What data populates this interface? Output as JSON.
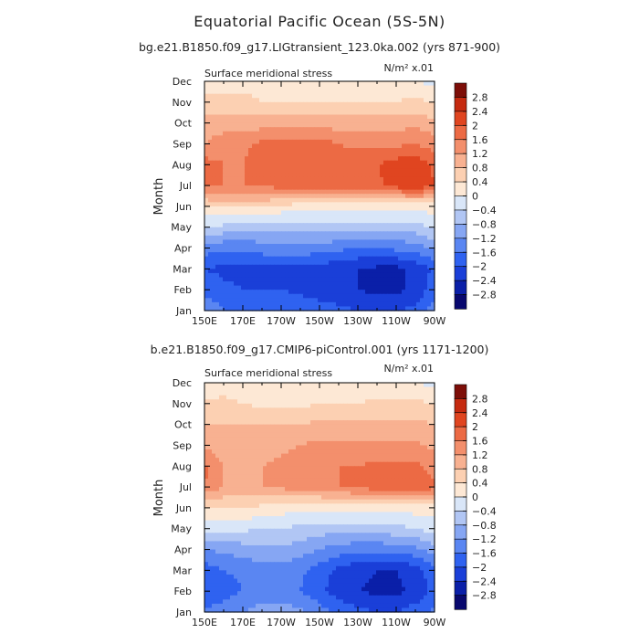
{
  "figure": {
    "title": "Equatorial Pacific Ocean (5S-5N)"
  },
  "chart_data": [
    {
      "type": "heatmap",
      "subtitle": "bg.e21.B1850.f09_g17.LIGtransient_123.0ka.002 (yrs 871-900)",
      "variable": "Surface meridional stress",
      "units": "N/m² x.01",
      "xlabel": "",
      "ylabel": "Month",
      "x_ticks": [
        "150E",
        "170E",
        "170W",
        "150W",
        "130W",
        "110W",
        "90W"
      ],
      "y_ticks": [
        "Jan",
        "Feb",
        "Mar",
        "Apr",
        "May",
        "Jun",
        "Jul",
        "Aug",
        "Sep",
        "Oct",
        "Nov",
        "Dec"
      ],
      "longitude_deg_east": [
        150,
        160,
        170,
        180,
        190,
        200,
        210,
        220,
        230,
        240,
        250,
        260,
        270
      ],
      "months": [
        "Jan",
        "Feb",
        "Mar",
        "Apr",
        "May",
        "Jun",
        "Jul",
        "Aug",
        "Sep",
        "Oct",
        "Nov",
        "Dec"
      ],
      "values": [
        [
          -1.3,
          -1.6,
          -1.6,
          -1.6,
          -1.6,
          -1.7,
          -1.8,
          -1.9,
          -2.0,
          -2.1,
          -2.0,
          -1.9,
          -1.4
        ],
        [
          -1.7,
          -1.9,
          -2.0,
          -2.0,
          -2.0,
          -2.1,
          -2.2,
          -2.3,
          -2.4,
          -2.5,
          -2.5,
          -2.3,
          -1.8
        ],
        [
          -2.0,
          -2.1,
          -2.1,
          -2.1,
          -2.1,
          -2.1,
          -2.2,
          -2.3,
          -2.4,
          -2.5,
          -2.5,
          -2.3,
          -1.9
        ],
        [
          -1.4,
          -1.5,
          -1.5,
          -1.4,
          -1.3,
          -1.3,
          -1.4,
          -1.5,
          -1.6,
          -1.6,
          -1.5,
          -1.4,
          -1.1
        ],
        [
          -0.4,
          -0.5,
          -0.6,
          -0.7,
          -0.7,
          -0.6,
          -0.6,
          -0.6,
          -0.6,
          -0.6,
          -0.6,
          -0.6,
          -0.3
        ],
        [
          0.4,
          0.5,
          0.5,
          0.5,
          0.3,
          0.2,
          0.2,
          0.1,
          0.1,
          0.1,
          0.1,
          0.1,
          0.2
        ],
        [
          1.7,
          1.6,
          1.6,
          1.6,
          1.8,
          1.8,
          1.8,
          1.8,
          1.8,
          1.9,
          2.2,
          2.4,
          2.0
        ],
        [
          1.8,
          1.6,
          1.6,
          1.8,
          1.9,
          2.0,
          2.0,
          1.9,
          1.9,
          2.0,
          2.2,
          2.3,
          1.9
        ],
        [
          1.2,
          1.4,
          1.5,
          1.7,
          1.8,
          1.8,
          1.8,
          1.6,
          1.5,
          1.5,
          1.5,
          1.6,
          1.4
        ],
        [
          1.0,
          1.0,
          1.0,
          1.0,
          1.0,
          1.0,
          1.0,
          1.0,
          1.0,
          1.0,
          1.0,
          1.1,
          0.9
        ],
        [
          0.6,
          0.6,
          0.5,
          0.4,
          0.4,
          0.4,
          0.4,
          0.4,
          0.4,
          0.4,
          0.4,
          0.5,
          0.4
        ],
        [
          0.1,
          0.2,
          0.3,
          0.3,
          0.2,
          0.2,
          0.2,
          0.2,
          0.2,
          0.1,
          0.1,
          0.0,
          -0.1
        ]
      ],
      "colorbar_labels": [
        "2.8",
        "2.4",
        "2",
        "1.6",
        "1.2",
        "0.8",
        "0.4",
        "0",
        "−0.4",
        "−0.8",
        "−1.2",
        "−1.6",
        "−2",
        "−2.4",
        "−2.8"
      ]
    },
    {
      "type": "heatmap",
      "subtitle": "b.e21.B1850.f09_g17.CMIP6-piControl.001 (yrs 1171-1200)",
      "variable": "Surface meridional stress",
      "units": "N/m² x.01",
      "xlabel": "",
      "ylabel": "Month",
      "x_ticks": [
        "150E",
        "170E",
        "170W",
        "150W",
        "130W",
        "110W",
        "90W"
      ],
      "y_ticks": [
        "Jan",
        "Feb",
        "Mar",
        "Apr",
        "May",
        "Jun",
        "Jul",
        "Aug",
        "Sep",
        "Oct",
        "Nov",
        "Dec"
      ],
      "longitude_deg_east": [
        150,
        160,
        170,
        180,
        190,
        200,
        210,
        220,
        230,
        240,
        250,
        260,
        270
      ],
      "months": [
        "Jan",
        "Feb",
        "Mar",
        "Apr",
        "May",
        "Jun",
        "Jul",
        "Aug",
        "Sep",
        "Oct",
        "Nov",
        "Dec"
      ],
      "values": [
        [
          -1.5,
          -1.4,
          -1.2,
          -1.0,
          -1.0,
          -1.1,
          -1.4,
          -1.7,
          -1.9,
          -2.0,
          -2.0,
          -1.8,
          -1.5
        ],
        [
          -2.0,
          -1.8,
          -1.6,
          -1.4,
          -1.5,
          -1.6,
          -1.9,
          -2.2,
          -2.4,
          -2.5,
          -2.5,
          -2.3,
          -1.9
        ],
        [
          -1.8,
          -1.6,
          -1.5,
          -1.4,
          -1.4,
          -1.5,
          -1.8,
          -2.1,
          -2.3,
          -2.4,
          -2.4,
          -2.2,
          -1.7
        ],
        [
          -1.2,
          -1.1,
          -1.0,
          -0.9,
          -0.9,
          -1.0,
          -1.2,
          -1.4,
          -1.5,
          -1.5,
          -1.4,
          -1.3,
          -1.0
        ],
        [
          -0.3,
          -0.3,
          -0.3,
          -0.4,
          -0.4,
          -0.5,
          -0.6,
          -0.6,
          -0.6,
          -0.6,
          -0.5,
          -0.4,
          -0.2
        ],
        [
          0.3,
          0.4,
          0.4,
          0.3,
          0.2,
          0.1,
          0.1,
          0.1,
          0.1,
          0.1,
          0.1,
          0.2,
          0.2
        ],
        [
          1.6,
          1.2,
          1.2,
          1.2,
          1.3,
          1.4,
          1.5,
          1.6,
          1.7,
          1.8,
          1.9,
          2.0,
          1.7
        ],
        [
          1.7,
          1.2,
          1.1,
          1.2,
          1.3,
          1.4,
          1.6,
          1.6,
          1.6,
          1.7,
          1.7,
          1.7,
          1.4
        ],
        [
          1.1,
          1.0,
          1.0,
          1.0,
          1.1,
          1.2,
          1.3,
          1.3,
          1.3,
          1.3,
          1.3,
          1.3,
          1.1
        ],
        [
          0.8,
          0.8,
          0.8,
          0.8,
          0.8,
          0.8,
          0.9,
          0.9,
          0.9,
          0.9,
          0.9,
          0.9,
          0.8
        ],
        [
          0.5,
          0.5,
          0.4,
          0.3,
          0.3,
          0.3,
          0.4,
          0.4,
          0.4,
          0.5,
          0.5,
          0.5,
          0.4
        ],
        [
          0.1,
          0.2,
          0.2,
          0.2,
          0.2,
          0.1,
          0.1,
          0.1,
          0.1,
          0.1,
          0.1,
          0.0,
          -0.1
        ]
      ],
      "colorbar_labels": [
        "2.8",
        "2.4",
        "2",
        "1.6",
        "1.2",
        "0.8",
        "0.4",
        "0",
        "−0.4",
        "−0.8",
        "−1.2",
        "−1.6",
        "−2",
        "−2.4",
        "−2.8"
      ]
    }
  ],
  "colors": {
    "scale": [
      {
        "max": -2.8,
        "color": "#08086e"
      },
      {
        "max": -2.4,
        "color": "#0a1fa8"
      },
      {
        "max": -2.0,
        "color": "#1a3fd8"
      },
      {
        "max": -1.6,
        "color": "#2f62f0"
      },
      {
        "max": -1.2,
        "color": "#5a86f2"
      },
      {
        "max": -0.8,
        "color": "#86a6f3"
      },
      {
        "max": -0.4,
        "color": "#b1c6f4"
      },
      {
        "max": 0.0,
        "color": "#d9e6f8"
      },
      {
        "max": 0.4,
        "color": "#fde8d5"
      },
      {
        "max": 0.8,
        "color": "#fcd0b2"
      },
      {
        "max": 1.2,
        "color": "#f8b191"
      },
      {
        "max": 1.6,
        "color": "#f38f6c"
      },
      {
        "max": 2.0,
        "color": "#ec6a44"
      },
      {
        "max": 2.4,
        "color": "#e04520"
      },
      {
        "max": 2.8,
        "color": "#c52a10"
      },
      {
        "max": 999,
        "color": "#7d0e08"
      }
    ]
  }
}
